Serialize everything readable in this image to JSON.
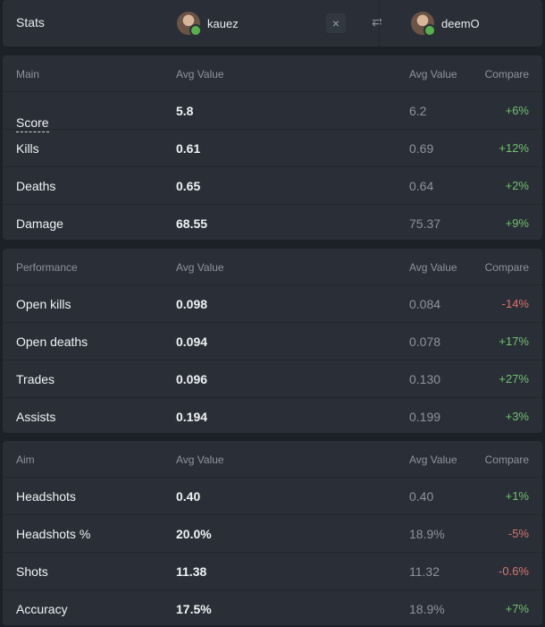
{
  "header": {
    "title": "Stats",
    "player1": "kauez",
    "player2": "deemO",
    "close_icon": "×",
    "swap_icon": "⇄"
  },
  "colors": {
    "positive": "#6fc26a",
    "negative": "#e0706a",
    "panel": "#2a2f37",
    "background": "#1c2027"
  },
  "sections": [
    {
      "title": "Main",
      "col_v1": "Avg Value",
      "col_v2": "Avg Value",
      "col_cmp": "Compare",
      "rows": [
        {
          "label": "Score",
          "v1": "5.8",
          "v2": "6.2",
          "cmp": "+6%"
        },
        {
          "label": "Kills",
          "v1": "0.61",
          "v2": "0.69",
          "cmp": "+12%"
        },
        {
          "label": "Deaths",
          "v1": "0.65",
          "v2": "0.64",
          "cmp": "+2%"
        },
        {
          "label": "Damage",
          "v1": "68.55",
          "v2": "75.37",
          "cmp": "+9%"
        }
      ]
    },
    {
      "title": "Performance",
      "col_v1": "Avg Value",
      "col_v2": "Avg Value",
      "col_cmp": "Compare",
      "rows": [
        {
          "label": "Open kills",
          "v1": "0.098",
          "v2": "0.084",
          "cmp": "-14%"
        },
        {
          "label": "Open deaths",
          "v1": "0.094",
          "v2": "0.078",
          "cmp": "+17%"
        },
        {
          "label": "Trades",
          "v1": "0.096",
          "v2": "0.130",
          "cmp": "+27%"
        },
        {
          "label": "Assists",
          "v1": "0.194",
          "v2": "0.199",
          "cmp": "+3%"
        }
      ]
    },
    {
      "title": "Aim",
      "col_v1": "Avg Value",
      "col_v2": "Avg Value",
      "col_cmp": "Compare",
      "rows": [
        {
          "label": "Headshots",
          "v1": "0.40",
          "v2": "0.40",
          "cmp": "+1%"
        },
        {
          "label": "Headshots %",
          "v1": "20.0%",
          "v2": "18.9%",
          "cmp": "-5%"
        },
        {
          "label": "Shots",
          "v1": "11.38",
          "v2": "11.32",
          "cmp": "-0.6%"
        },
        {
          "label": "Accuracy",
          "v1": "17.5%",
          "v2": "18.9%",
          "cmp": "+7%"
        }
      ]
    }
  ]
}
